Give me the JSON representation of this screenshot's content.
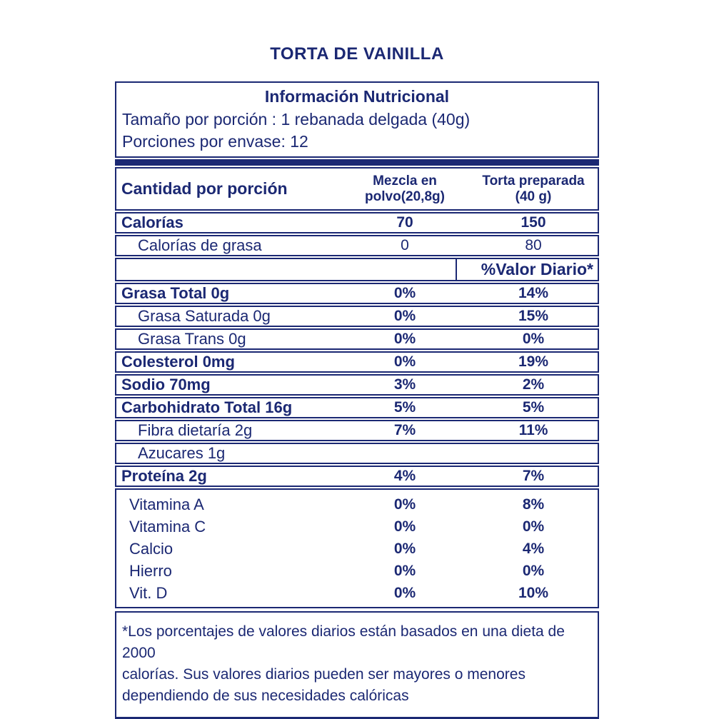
{
  "title": "TORTA DE VAINILLA",
  "colors": {
    "navy": "#1b2873",
    "background": "#ffffff"
  },
  "info_box": {
    "heading": "Información Nutricional",
    "serving_size_line": "Tamaño por porción : 1 rebanada delgada (40g)",
    "servings_per_package_line": "Porciones por envase: 12"
  },
  "table": {
    "header": {
      "amount_per_serving": "Cantidad por porción",
      "col_powder_line1": "Mezcla en",
      "col_powder_line2": "polvo(20,8g)",
      "col_prepared_line1": "Torta preparada",
      "col_prepared_line2": "(40 g)"
    },
    "daily_value_label": "%Valor Diario*",
    "rows": [
      {
        "label": "Calorías",
        "powder": "70",
        "prepared": "150"
      },
      {
        "label": "Calorías de grasa",
        "powder": "0",
        "prepared": "80"
      },
      {
        "label": "Grasa Total 0g",
        "powder": "0%",
        "prepared": "14%"
      },
      {
        "label": "Grasa Saturada 0g",
        "powder": "0%",
        "prepared": "15%"
      },
      {
        "label": "Grasa Trans 0g",
        "powder": "0%",
        "prepared": "0%"
      },
      {
        "label": "Colesterol 0mg",
        "powder": "0%",
        "prepared": "19%"
      },
      {
        "label": "Sodio 70mg",
        "powder": "3%",
        "prepared": "2%"
      },
      {
        "label": "Carbohidrato Total 16g",
        "powder": "5%",
        "prepared": "5%"
      },
      {
        "label": "Fibra dietaría 2g",
        "powder": "7%",
        "prepared": "11%"
      },
      {
        "label": "Azucares 1g",
        "powder": "",
        "prepared": ""
      },
      {
        "label": "Proteína 2g",
        "powder": "4%",
        "prepared": "7%"
      }
    ],
    "vitamin_rows": [
      {
        "label": "Vitamina A",
        "powder": "0%",
        "prepared": "8%"
      },
      {
        "label": "Vitamina C",
        "powder": "0%",
        "prepared": "0%"
      },
      {
        "label": "Calcio",
        "powder": "0%",
        "prepared": "4%"
      },
      {
        "label": "Hierro",
        "powder": "0%",
        "prepared": "0%"
      },
      {
        "label": "Vit. D",
        "powder": "0%",
        "prepared": "10%"
      }
    ]
  },
  "footnote": {
    "lines": [
      "*Los porcentajes de valores diarios están basados en una dieta de 2000",
      "calorías. Sus valores diarios pueden ser mayores o menores",
      "dependiendo de sus necesidades calóricas"
    ]
  }
}
